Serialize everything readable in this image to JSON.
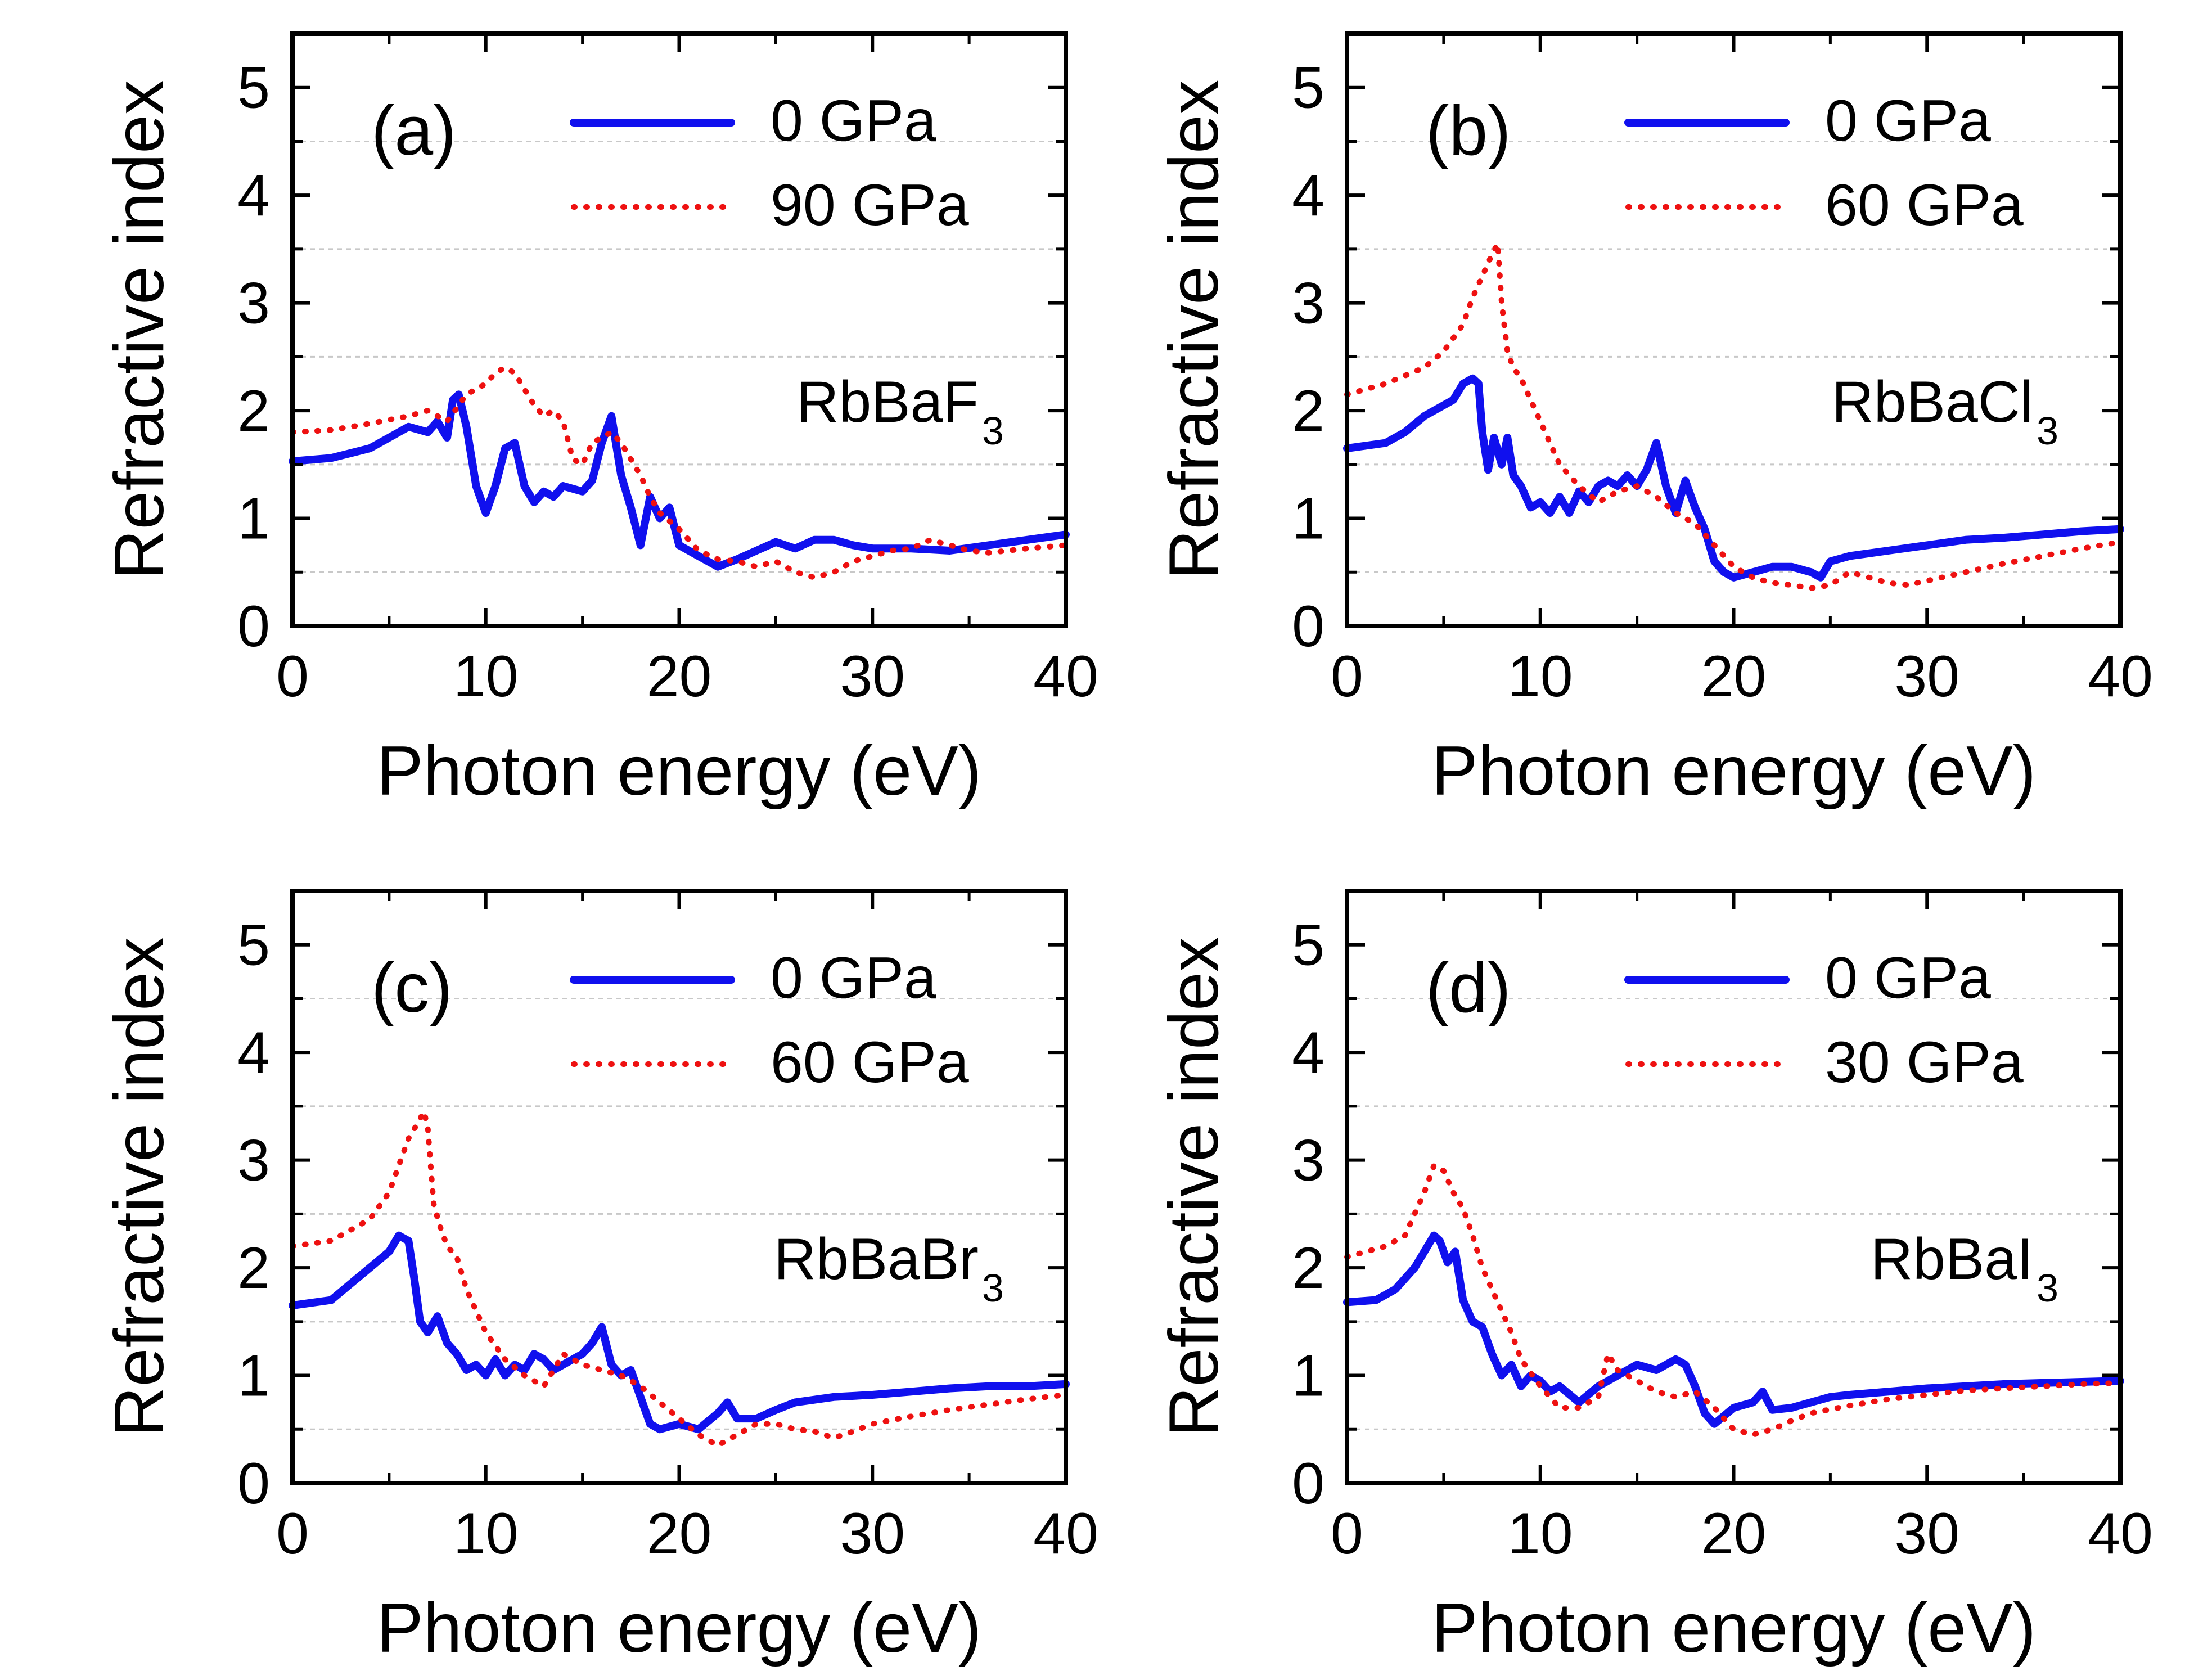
{
  "colors": {
    "series0": "#1010ee",
    "series1": "#ee1111",
    "grid": "#c8c8c8",
    "axis": "#000000"
  },
  "chart_data": [
    {
      "type": "line",
      "panel": "(a)",
      "compound": {
        "base": "RbBaF",
        "sub": "3"
      },
      "xlabel": "Photon energy (eV)",
      "ylabel": "Refractive index",
      "xlim": [
        0,
        40
      ],
      "ylim": [
        0,
        5.5
      ],
      "xticks": [
        "0",
        "10",
        "20",
        "30",
        "40"
      ],
      "yticks": [
        "0",
        "1",
        "2",
        "3",
        "4",
        "5"
      ],
      "grid": true,
      "legend": "top-right",
      "series": [
        {
          "name": "0 GPa",
          "style": "solid",
          "x": [
            0,
            2,
            4,
            5,
            6,
            7,
            7.5,
            8,
            8.3,
            8.6,
            9,
            9.5,
            10,
            10.5,
            11,
            11.5,
            12,
            12.5,
            13,
            13.5,
            14,
            15,
            15.5,
            16,
            16.5,
            17,
            17.5,
            18,
            18.5,
            19,
            19.5,
            20,
            21,
            22,
            23,
            24,
            25,
            26,
            27,
            28,
            29,
            30,
            32,
            34,
            36,
            38,
            40
          ],
          "y": [
            1.53,
            1.56,
            1.65,
            1.75,
            1.85,
            1.8,
            1.9,
            1.75,
            2.1,
            2.15,
            1.85,
            1.3,
            1.05,
            1.3,
            1.65,
            1.7,
            1.3,
            1.15,
            1.25,
            1.2,
            1.3,
            1.25,
            1.35,
            1.7,
            1.95,
            1.4,
            1.1,
            0.75,
            1.2,
            1.0,
            1.1,
            0.75,
            0.65,
            0.55,
            0.62,
            0.7,
            0.78,
            0.72,
            0.8,
            0.8,
            0.75,
            0.72,
            0.72,
            0.7,
            0.75,
            0.8,
            0.85
          ]
        },
        {
          "name": "90 GPa",
          "style": "dotted",
          "x": [
            0,
            2,
            4,
            6,
            7,
            8,
            9,
            10,
            10.5,
            11,
            11.5,
            12,
            12.5,
            13,
            13.5,
            14,
            14.5,
            15,
            15.5,
            16,
            16.5,
            17,
            17.5,
            18,
            18.5,
            19,
            20,
            21,
            22,
            23,
            24,
            25,
            26,
            27,
            28,
            29,
            30,
            31,
            32,
            33,
            34,
            35,
            36,
            38,
            40
          ],
          "y": [
            1.8,
            1.82,
            1.88,
            1.95,
            2.0,
            1.9,
            2.15,
            2.25,
            2.35,
            2.4,
            2.35,
            2.2,
            2.05,
            1.95,
            2.0,
            1.9,
            1.55,
            1.5,
            1.7,
            1.75,
            1.8,
            1.7,
            1.55,
            1.4,
            1.2,
            1.05,
            0.9,
            0.7,
            0.62,
            0.6,
            0.55,
            0.6,
            0.5,
            0.45,
            0.5,
            0.6,
            0.65,
            0.7,
            0.72,
            0.8,
            0.75,
            0.7,
            0.68,
            0.72,
            0.75
          ]
        }
      ]
    },
    {
      "type": "line",
      "panel": "(b)",
      "compound": {
        "base": "RbBaCl",
        "sub": "3"
      },
      "xlabel": "Photon energy (eV)",
      "ylabel": "Refractive index",
      "xlim": [
        0,
        40
      ],
      "ylim": [
        0,
        5.5
      ],
      "xticks": [
        "0",
        "10",
        "20",
        "30",
        "40"
      ],
      "yticks": [
        "0",
        "1",
        "2",
        "3",
        "4",
        "5"
      ],
      "grid": true,
      "legend": "top-right",
      "series": [
        {
          "name": "0 GPa",
          "style": "solid",
          "x": [
            0,
            2,
            3,
            4,
            5,
            5.5,
            6,
            6.5,
            6.8,
            7,
            7.3,
            7.6,
            8,
            8.3,
            8.6,
            9,
            9.5,
            10,
            10.5,
            11,
            11.5,
            12,
            12.5,
            13,
            13.5,
            14,
            14.5,
            15,
            15.5,
            16,
            16.5,
            17,
            17.5,
            18,
            18.5,
            19,
            19.5,
            20,
            21,
            22,
            23,
            24,
            24.5,
            25,
            26,
            28,
            30,
            32,
            34,
            36,
            38,
            40
          ],
          "y": [
            1.65,
            1.7,
            1.8,
            1.95,
            2.05,
            2.1,
            2.25,
            2.3,
            2.25,
            1.8,
            1.45,
            1.75,
            1.5,
            1.75,
            1.4,
            1.3,
            1.1,
            1.15,
            1.05,
            1.2,
            1.05,
            1.25,
            1.15,
            1.3,
            1.35,
            1.3,
            1.4,
            1.3,
            1.45,
            1.7,
            1.3,
            1.05,
            1.35,
            1.1,
            0.9,
            0.6,
            0.5,
            0.45,
            0.5,
            0.55,
            0.55,
            0.5,
            0.45,
            0.6,
            0.65,
            0.7,
            0.75,
            0.8,
            0.82,
            0.85,
            0.88,
            0.9
          ]
        },
        {
          "name": "60 GPa",
          "style": "dotted",
          "x": [
            0,
            2,
            4,
            5,
            6,
            6.5,
            7,
            7.5,
            7.8,
            8,
            8.3,
            8.6,
            9,
            9.5,
            10,
            10.5,
            11,
            12,
            13,
            14,
            15,
            16,
            17,
            18,
            19,
            20,
            21,
            22,
            23,
            24,
            25,
            26,
            27,
            28,
            29,
            30,
            32,
            34,
            36,
            38,
            40
          ],
          "y": [
            2.15,
            2.25,
            2.4,
            2.55,
            2.8,
            3.05,
            3.25,
            3.45,
            3.55,
            3.0,
            2.55,
            2.4,
            2.3,
            2.1,
            1.9,
            1.7,
            1.5,
            1.3,
            1.15,
            1.25,
            1.3,
            1.2,
            1.05,
            0.95,
            0.75,
            0.55,
            0.45,
            0.4,
            0.38,
            0.35,
            0.38,
            0.5,
            0.45,
            0.4,
            0.38,
            0.42,
            0.5,
            0.58,
            0.65,
            0.72,
            0.78
          ]
        }
      ]
    },
    {
      "type": "line",
      "panel": "(c)",
      "compound": {
        "base": "RbBaBr",
        "sub": "3"
      },
      "xlabel": "Photon energy (eV)",
      "ylabel": "Refractive index",
      "xlim": [
        0,
        40
      ],
      "ylim": [
        0,
        5.5
      ],
      "xticks": [
        "0",
        "10",
        "20",
        "30",
        "40"
      ],
      "yticks": [
        "0",
        "1",
        "2",
        "3",
        "4",
        "5"
      ],
      "grid": true,
      "legend": "top-right",
      "series": [
        {
          "name": "0 GPa",
          "style": "solid",
          "x": [
            0,
            2,
            3,
            4,
            5,
            5.5,
            6,
            6.3,
            6.6,
            7,
            7.5,
            8,
            8.5,
            9,
            9.5,
            10,
            10.5,
            11,
            11.5,
            12,
            12.5,
            13,
            13.5,
            14,
            14.5,
            15,
            15.5,
            16,
            16.5,
            17,
            17.5,
            18,
            18.5,
            19,
            20,
            21,
            22,
            22.5,
            23,
            24,
            25,
            26,
            28,
            30,
            32,
            34,
            36,
            38,
            40
          ],
          "y": [
            1.65,
            1.7,
            1.85,
            2.0,
            2.15,
            2.3,
            2.25,
            1.9,
            1.5,
            1.4,
            1.55,
            1.3,
            1.2,
            1.05,
            1.1,
            1.0,
            1.15,
            1.0,
            1.1,
            1.05,
            1.2,
            1.15,
            1.05,
            1.1,
            1.15,
            1.2,
            1.3,
            1.45,
            1.1,
            1.0,
            1.05,
            0.8,
            0.55,
            0.5,
            0.55,
            0.5,
            0.65,
            0.75,
            0.6,
            0.6,
            0.68,
            0.75,
            0.8,
            0.82,
            0.85,
            0.88,
            0.9,
            0.9,
            0.92
          ]
        },
        {
          "name": "60 GPa",
          "style": "dotted",
          "x": [
            0,
            2,
            4,
            5,
            5.5,
            6,
            6.5,
            6.8,
            7,
            7.3,
            7.6,
            8,
            8.5,
            9,
            9.5,
            10,
            11,
            12,
            13,
            14,
            15,
            16,
            17,
            18,
            19,
            20,
            21,
            22,
            23,
            24,
            25,
            26,
            27,
            28,
            29,
            30,
            32,
            34,
            36,
            38,
            40
          ],
          "y": [
            2.2,
            2.25,
            2.45,
            2.7,
            2.95,
            3.2,
            3.35,
            3.45,
            3.3,
            2.6,
            2.4,
            2.2,
            2.1,
            1.8,
            1.6,
            1.4,
            1.15,
            1.0,
            0.9,
            1.2,
            1.1,
            1.05,
            1.0,
            0.9,
            0.75,
            0.6,
            0.45,
            0.35,
            0.45,
            0.55,
            0.55,
            0.5,
            0.48,
            0.42,
            0.48,
            0.55,
            0.62,
            0.68,
            0.73,
            0.78,
            0.82
          ]
        }
      ]
    },
    {
      "type": "line",
      "panel": "(d)",
      "compound": {
        "base": "RbBaI",
        "sub": "3"
      },
      "xlabel": "Photon energy (eV)",
      "ylabel": "Refractive index",
      "xlim": [
        0,
        40
      ],
      "ylim": [
        0,
        5.5
      ],
      "xticks": [
        "0",
        "10",
        "20",
        "30",
        "40"
      ],
      "yticks": [
        "0",
        "1",
        "2",
        "3",
        "4",
        "5"
      ],
      "grid": true,
      "legend": "top-right",
      "series": [
        {
          "name": "0 GPa",
          "style": "solid",
          "x": [
            0,
            1.5,
            2.5,
            3.5,
            4,
            4.5,
            4.8,
            5.2,
            5.6,
            6,
            6.5,
            7,
            7.5,
            8,
            8.5,
            9,
            9.5,
            10,
            10.5,
            11,
            12,
            13,
            14,
            15,
            16,
            17,
            17.5,
            18,
            18.5,
            19,
            20,
            21,
            21.5,
            22,
            23,
            24,
            25,
            26,
            28,
            30,
            32,
            34,
            36,
            38,
            40
          ],
          "y": [
            1.68,
            1.7,
            1.8,
            2.0,
            2.15,
            2.3,
            2.25,
            2.05,
            2.15,
            1.7,
            1.5,
            1.45,
            1.2,
            1.0,
            1.1,
            0.9,
            1.0,
            0.95,
            0.85,
            0.9,
            0.75,
            0.9,
            1.0,
            1.1,
            1.05,
            1.15,
            1.1,
            0.9,
            0.65,
            0.55,
            0.7,
            0.75,
            0.85,
            0.68,
            0.7,
            0.75,
            0.8,
            0.82,
            0.85,
            0.88,
            0.9,
            0.92,
            0.93,
            0.94,
            0.95
          ]
        },
        {
          "name": "30 GPa",
          "style": "dotted",
          "x": [
            0,
            2,
            3,
            3.5,
            4,
            4.5,
            5,
            5.5,
            6,
            6.5,
            7,
            7.5,
            8,
            8.5,
            9,
            10,
            11,
            12,
            13,
            13.5,
            14,
            15,
            16,
            17,
            18,
            19,
            20,
            21,
            22,
            23,
            24,
            26,
            28,
            30,
            32,
            34,
            36,
            38,
            40
          ],
          "y": [
            2.1,
            2.2,
            2.3,
            2.5,
            2.7,
            2.95,
            2.9,
            2.7,
            2.55,
            2.3,
            2.0,
            1.8,
            1.6,
            1.4,
            1.15,
            0.9,
            0.7,
            0.7,
            0.8,
            1.2,
            1.05,
            0.95,
            0.85,
            0.8,
            0.85,
            0.7,
            0.5,
            0.45,
            0.5,
            0.58,
            0.65,
            0.72,
            0.78,
            0.82,
            0.86,
            0.88,
            0.9,
            0.92,
            0.93
          ]
        }
      ]
    }
  ]
}
